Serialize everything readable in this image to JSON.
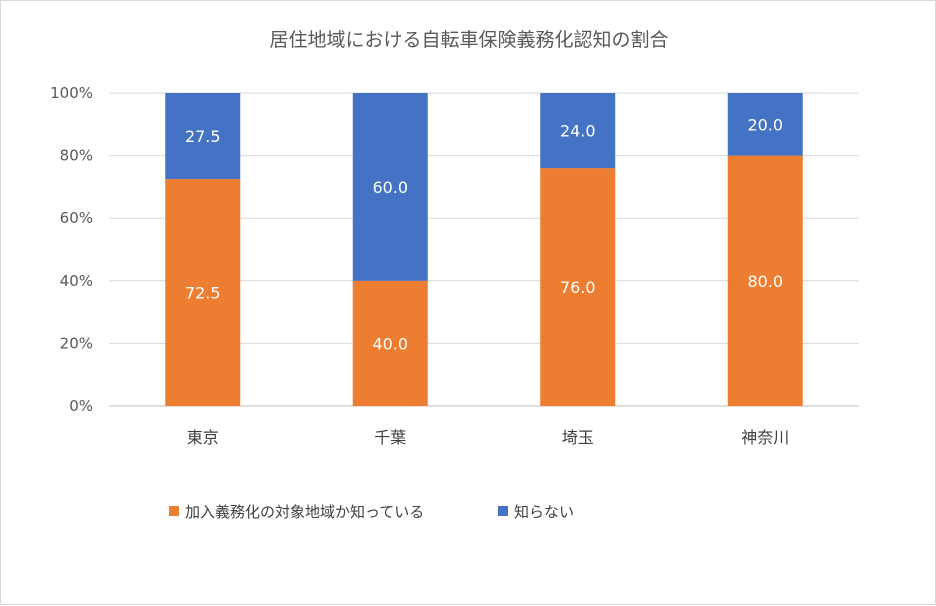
{
  "chart_data": {
    "type": "bar",
    "stacked": true,
    "title": "居住地域における自転車保険義務化認知の割合",
    "xlabel": "",
    "ylabel": "",
    "categories": [
      "東京",
      "千葉",
      "埼玉",
      "神奈川"
    ],
    "y_ticks": [
      "0%",
      "20%",
      "40%",
      "60%",
      "80%",
      "100%"
    ],
    "ylim": [
      0,
      100
    ],
    "grid": true,
    "legend_position": "bottom",
    "series": [
      {
        "name": "加入義務化の対象地域か知っている",
        "color": "#ED7D31",
        "values": [
          72.5,
          40.0,
          76.0,
          80.0
        ],
        "labels": [
          "72.5",
          "40.0",
          "76.0",
          "80.0"
        ]
      },
      {
        "name": "知らない",
        "color": "#4472C4",
        "values": [
          27.5,
          60.0,
          24.0,
          20.0
        ],
        "labels": [
          "27.5",
          "60.0",
          "24.0",
          "20.0"
        ]
      }
    ]
  }
}
